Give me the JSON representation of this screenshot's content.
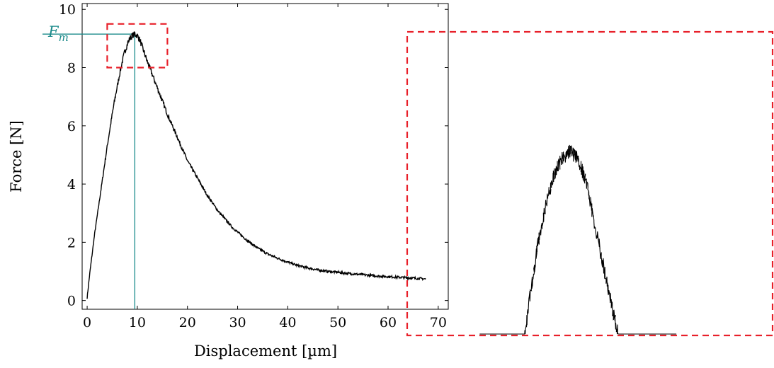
{
  "chart_data": {
    "type": "line",
    "xlabel": "Displacement [µm]",
    "ylabel": "Force [N]",
    "xlim": [
      -1,
      72
    ],
    "ylim": [
      -0.3,
      10.2
    ],
    "xticks": [
      0,
      10,
      20,
      30,
      40,
      50,
      60,
      70
    ],
    "yticks": [
      0,
      2,
      4,
      6,
      8,
      10
    ],
    "grid": false,
    "series": [
      {
        "color": "#000000",
        "x": [
          0,
          0.5,
          1,
          1.5,
          2,
          2.5,
          3,
          3.5,
          4,
          4.5,
          5,
          5.5,
          6,
          6.5,
          7,
          7.5,
          8,
          8.5,
          9,
          9.5,
          10,
          10.5,
          11,
          11.5,
          12,
          13,
          14,
          15,
          16,
          17,
          18,
          19,
          20,
          21,
          22,
          23,
          24,
          25,
          26,
          27,
          28,
          29,
          30,
          32,
          34,
          36,
          38,
          40,
          42,
          44,
          46,
          48,
          50,
          52,
          54,
          56,
          58,
          60,
          62,
          64,
          66,
          67.5
        ],
        "y": [
          0.1,
          0.9,
          1.6,
          2.3,
          2.9,
          3.5,
          4.1,
          4.7,
          5.3,
          5.85,
          6.4,
          6.9,
          7.35,
          7.8,
          8.2,
          8.55,
          8.8,
          9.0,
          9.1,
          9.15,
          9.1,
          8.95,
          8.7,
          8.45,
          8.2,
          7.75,
          7.3,
          6.85,
          6.4,
          6.0,
          5.6,
          5.2,
          4.8,
          4.5,
          4.2,
          3.9,
          3.6,
          3.35,
          3.1,
          2.9,
          2.7,
          2.5,
          2.35,
          2.05,
          1.8,
          1.6,
          1.45,
          1.32,
          1.2,
          1.12,
          1.05,
          1.0,
          0.97,
          0.93,
          0.9,
          0.87,
          0.84,
          0.82,
          0.8,
          0.78,
          0.76,
          0.74
        ]
      }
    ],
    "annotations": {
      "peak_label": "F_m",
      "peak_label_main": "F",
      "peak_label_sub": "m",
      "peak_x": 9.5,
      "peak_y": 9.15,
      "zoom_region": {
        "x": [
          4,
          16
        ],
        "y": [
          8,
          9.5
        ]
      }
    },
    "colors": {
      "curve": "#000000",
      "peak_marker": "#1a8a8a",
      "zoom_box": "#e8202a"
    }
  }
}
